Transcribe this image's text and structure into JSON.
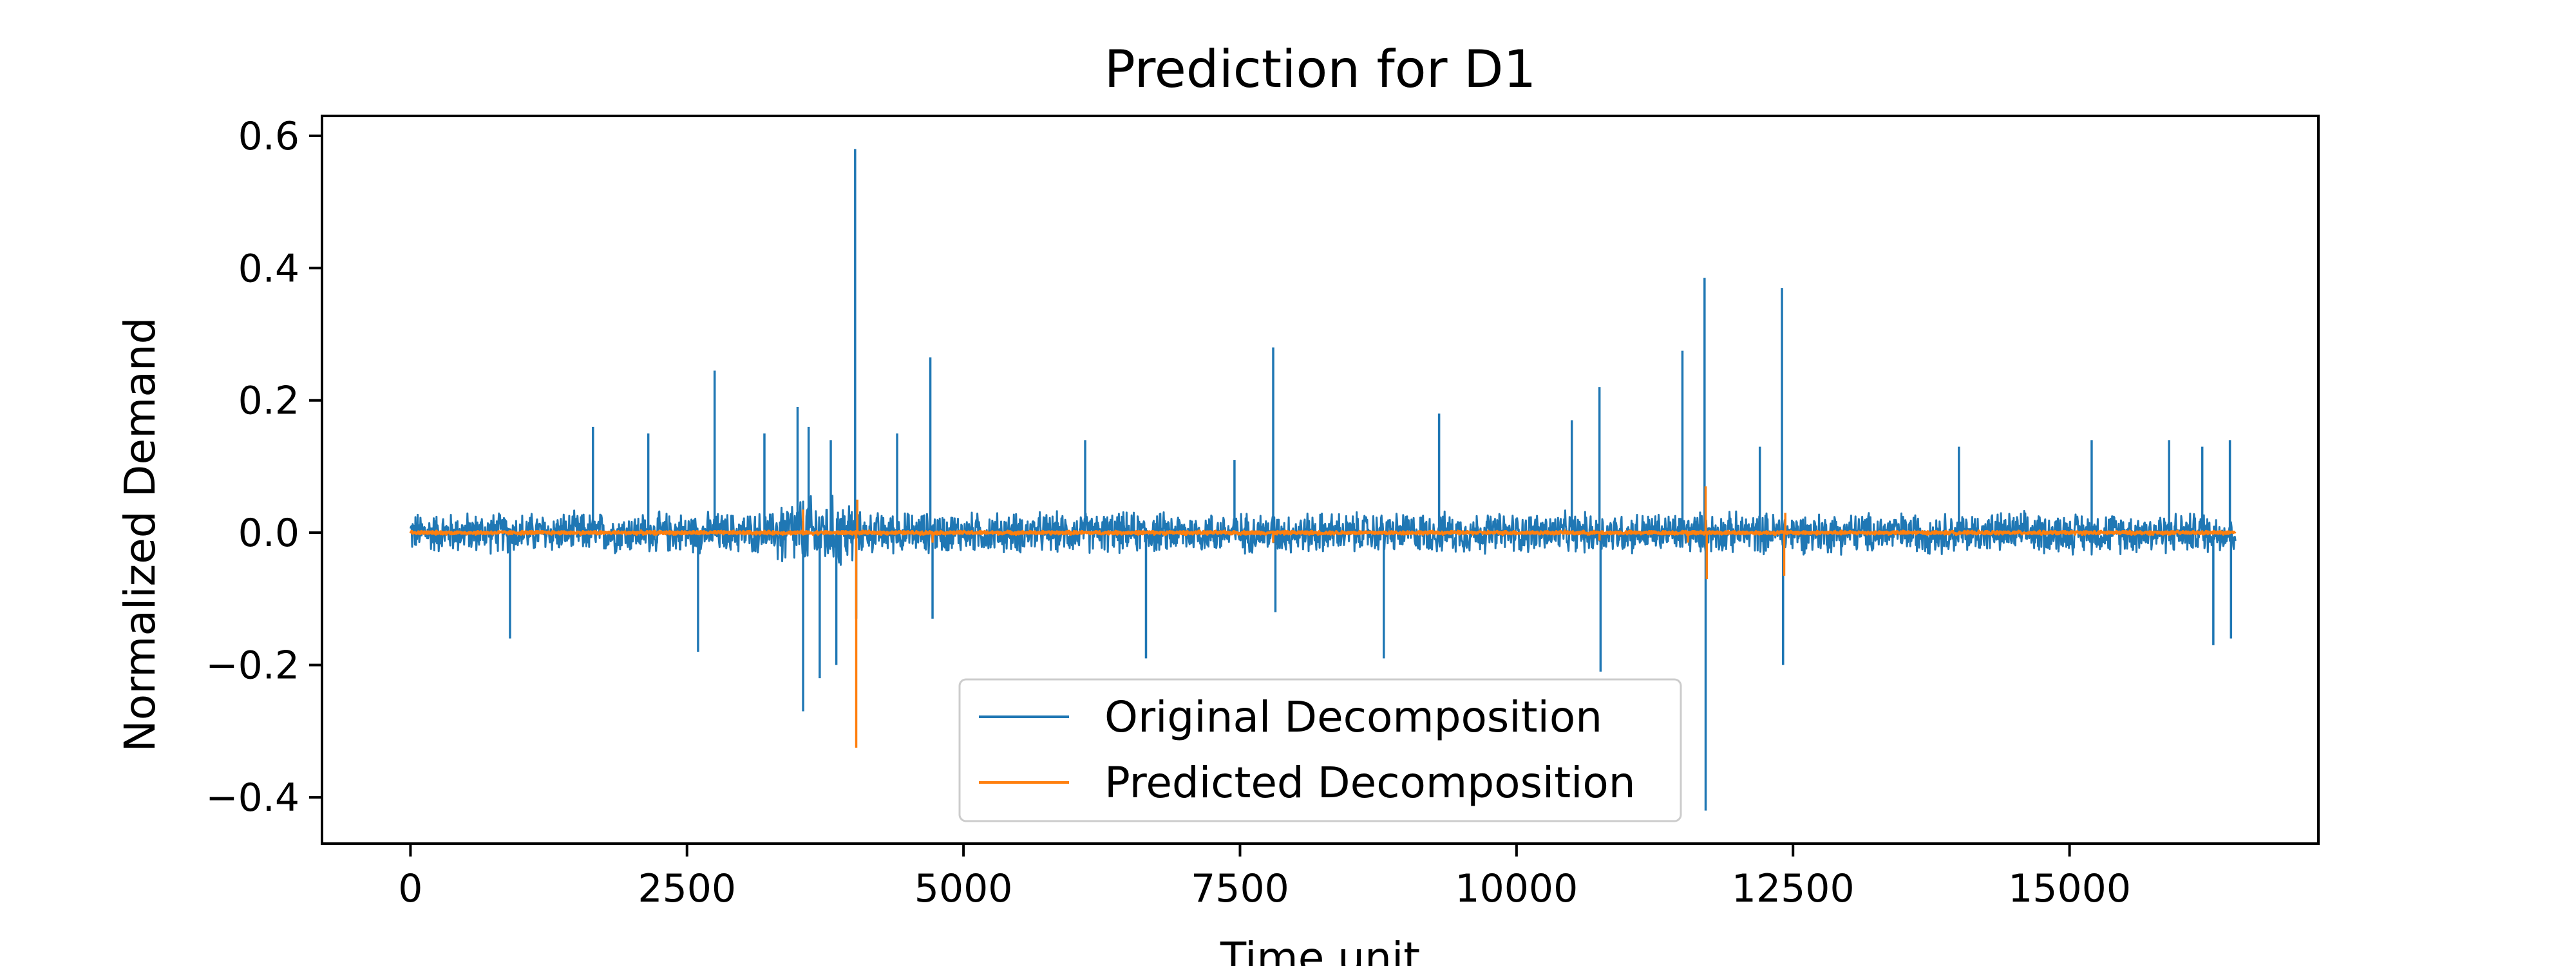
{
  "chart_data": {
    "type": "line",
    "title": "Prediction for D1",
    "xlabel": "Time unit",
    "ylabel": "Normalized Demand",
    "xlim": [
      -800,
      17250
    ],
    "ylim": [
      -0.47,
      0.63
    ],
    "x_ticks": [
      0,
      2500,
      5000,
      7500,
      10000,
      12500,
      15000
    ],
    "x_tick_labels": [
      "0",
      "2500",
      "5000",
      "7500",
      "10000",
      "12500",
      "15000"
    ],
    "y_ticks": [
      -0.4,
      -0.2,
      0.0,
      0.2,
      0.4,
      0.6
    ],
    "y_tick_labels": [
      "−0.4",
      "−0.2",
      "0.0",
      "0.2",
      "0.4",
      "0.6"
    ],
    "grid": false,
    "legend_position": "lower-center",
    "x_start": 0,
    "x_end": 16500,
    "series": [
      {
        "name": "Original Decomposition",
        "color": "#1f77b4",
        "noise_amplitude": 0.035,
        "spikes": [
          {
            "x": 900,
            "y": -0.16
          },
          {
            "x": 1650,
            "y": 0.16
          },
          {
            "x": 2150,
            "y": 0.15
          },
          {
            "x": 2600,
            "y": -0.18
          },
          {
            "x": 2750,
            "y": 0.245
          },
          {
            "x": 3200,
            "y": 0.15
          },
          {
            "x": 3500,
            "y": 0.19
          },
          {
            "x": 3550,
            "y": -0.27
          },
          {
            "x": 3600,
            "y": 0.16
          },
          {
            "x": 3700,
            "y": -0.22
          },
          {
            "x": 3800,
            "y": 0.14
          },
          {
            "x": 3850,
            "y": -0.2
          },
          {
            "x": 4020,
            "y": 0.58
          },
          {
            "x": 4030,
            "y": -0.13
          },
          {
            "x": 4400,
            "y": 0.15
          },
          {
            "x": 4700,
            "y": 0.265
          },
          {
            "x": 4720,
            "y": -0.13
          },
          {
            "x": 6100,
            "y": 0.14
          },
          {
            "x": 6650,
            "y": -0.19
          },
          {
            "x": 7450,
            "y": 0.11
          },
          {
            "x": 7800,
            "y": 0.28
          },
          {
            "x": 7820,
            "y": -0.12
          },
          {
            "x": 8800,
            "y": -0.19
          },
          {
            "x": 9300,
            "y": 0.18
          },
          {
            "x": 10500,
            "y": 0.17
          },
          {
            "x": 10750,
            "y": 0.22
          },
          {
            "x": 10760,
            "y": -0.21
          },
          {
            "x": 11500,
            "y": 0.275
          },
          {
            "x": 11700,
            "y": 0.385
          },
          {
            "x": 11710,
            "y": -0.42
          },
          {
            "x": 12200,
            "y": 0.13
          },
          {
            "x": 12400,
            "y": 0.37
          },
          {
            "x": 12410,
            "y": -0.2
          },
          {
            "x": 14000,
            "y": 0.13
          },
          {
            "x": 15200,
            "y": 0.14
          },
          {
            "x": 15900,
            "y": 0.14
          },
          {
            "x": 16200,
            "y": 0.13
          },
          {
            "x": 16300,
            "y": -0.17
          },
          {
            "x": 16450,
            "y": 0.14
          },
          {
            "x": 16460,
            "y": -0.16
          }
        ]
      },
      {
        "name": "Predicted Decomposition",
        "color": "#ff7f0e",
        "noise_amplitude": 0.003,
        "spikes": [
          {
            "x": 3550,
            "y": 0.035
          },
          {
            "x": 4030,
            "y": -0.325
          },
          {
            "x": 4040,
            "y": 0.05
          },
          {
            "x": 4720,
            "y": -0.015
          },
          {
            "x": 7800,
            "y": -0.015
          },
          {
            "x": 10750,
            "y": -0.012
          },
          {
            "x": 11550,
            "y": -0.015
          },
          {
            "x": 11710,
            "y": 0.07
          },
          {
            "x": 11720,
            "y": -0.07
          },
          {
            "x": 12420,
            "y": -0.065
          },
          {
            "x": 12430,
            "y": 0.03
          }
        ]
      }
    ]
  }
}
